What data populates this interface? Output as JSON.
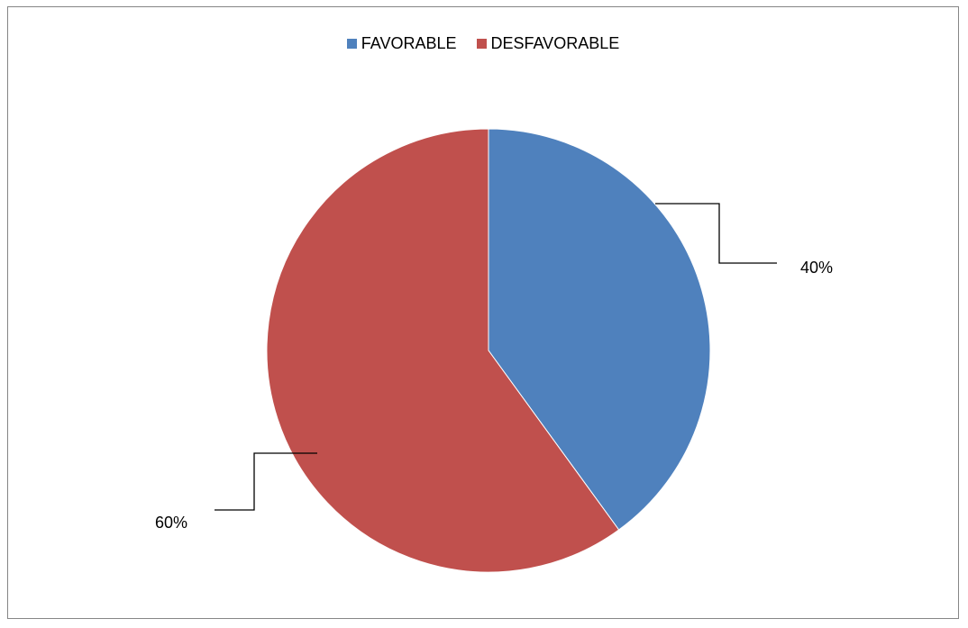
{
  "chart_data": {
    "type": "pie",
    "categories": [
      "FAVORABLE",
      "DESFAVORABLE"
    ],
    "values": [
      40,
      60
    ],
    "labels": [
      "40%",
      "60%"
    ],
    "colors": [
      "#4F81BD",
      "#C0504D"
    ],
    "legend_position": "top",
    "title": ""
  }
}
